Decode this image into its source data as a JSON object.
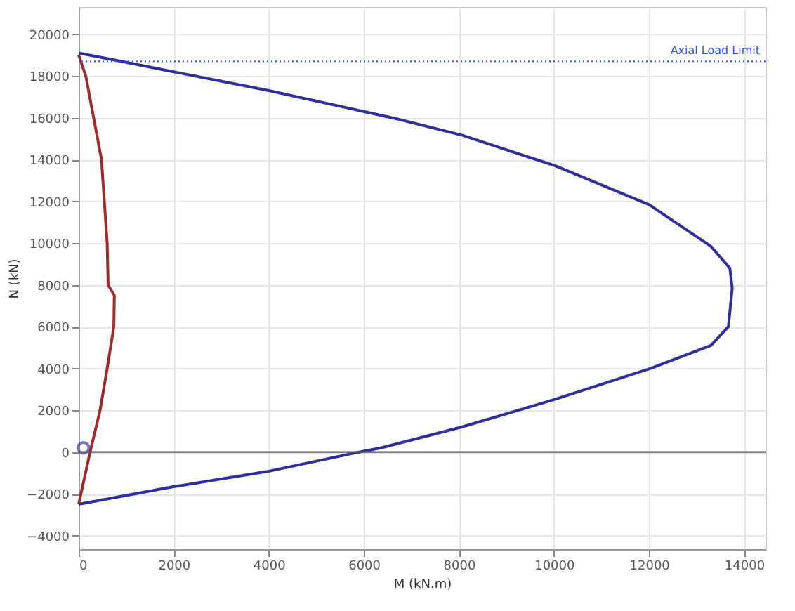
{
  "chart_data": {
    "type": "line",
    "xlabel": "M (kN.m)",
    "ylabel": "N (kN)",
    "xlim": [
      0,
      14450
    ],
    "ylim": [
      -4650,
      21300
    ],
    "xticks": [
      0,
      2000,
      4000,
      6000,
      8000,
      10000,
      12000,
      14000
    ],
    "yticks": [
      -4000,
      -2000,
      0,
      2000,
      4000,
      6000,
      8000,
      10000,
      12000,
      14000,
      16000,
      18000,
      20000
    ],
    "grid": true,
    "marker": "none",
    "line_style": "solid",
    "series": [
      {
        "color": "#2e2e9e",
        "x": [
          0,
          1000,
          2000,
          4000,
          6650,
          8060,
          10030,
          12000,
          13300,
          13700,
          13750,
          13670,
          13300,
          12030,
          10030,
          9250,
          8060,
          6360,
          5900,
          3970,
          1970,
          0
        ],
        "values": [
          19100,
          18650,
          18200,
          17300,
          15970,
          15170,
          13700,
          11840,
          9850,
          8800,
          7850,
          6000,
          5100,
          4000,
          2530,
          2000,
          1200,
          200,
          0,
          -930,
          -1670,
          -2500
        ]
      },
      {
        "color": "#9e2a2a",
        "x": [
          0,
          150,
          480,
          600,
          620,
          750,
          740,
          600,
          450,
          240,
          0
        ],
        "values": [
          19000,
          18000,
          14000,
          10000,
          8000,
          7500,
          6000,
          4000,
          2000,
          0,
          -2500
        ]
      },
      {
        "type": "scatter",
        "marker": "circle",
        "color": "#3a3ab0",
        "x": [
          100
        ],
        "values": [
          200
        ]
      }
    ],
    "ref_lines": [
      {
        "axis": "y",
        "value": 18700,
        "label": "Axial Load Limit",
        "color": "#3355ee",
        "line_style": "dotted"
      },
      {
        "axis": "y",
        "value": 0,
        "color": "#555555",
        "line_style": "solid"
      }
    ]
  }
}
